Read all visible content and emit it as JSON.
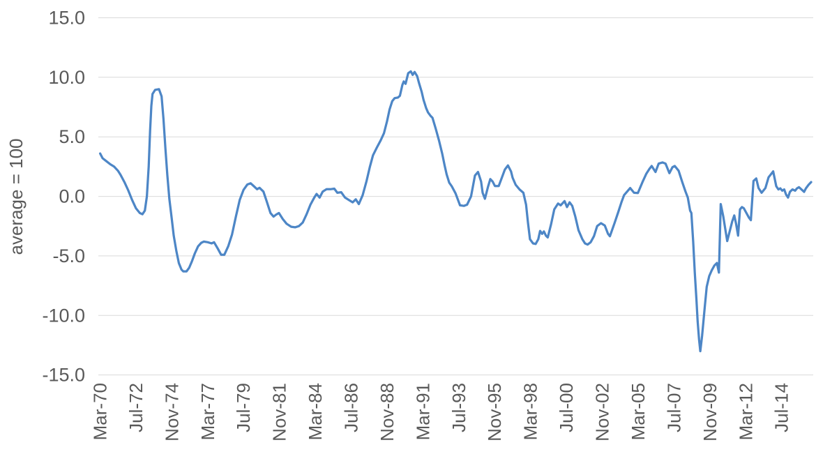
{
  "chart_data": {
    "type": "line",
    "title": "",
    "xlabel": "",
    "ylabel": "average = 100",
    "ylim": [
      -15,
      15
    ],
    "ytick_step": 5,
    "grid": true,
    "legend": false,
    "grid_color": "#d9d9d9",
    "axis_text_color": "#595959",
    "background_color": "#ffffff",
    "ytick_labels": [
      "15.0",
      "10.0",
      "5.0",
      "0.0",
      "-5.0",
      "-10.0",
      "-15.0"
    ],
    "xtick_labels": [
      "Mar-70",
      "Jul-72",
      "Nov-74",
      "Mar-77",
      "Jul-79",
      "Nov-81",
      "Mar-84",
      "Jul-86",
      "Nov-88",
      "Mar-91",
      "Jul-93",
      "Nov-95",
      "Mar-98",
      "Jul-00",
      "Nov-02",
      "Mar-05",
      "Jul-07",
      "Nov-09",
      "Mar-12",
      "Jul-14"
    ],
    "xtick_years": [
      1970.167,
      1972.5,
      1974.833,
      1977.167,
      1979.5,
      1981.833,
      1984.167,
      1986.5,
      1988.833,
      1991.167,
      1993.5,
      1995.833,
      1998.167,
      2000.5,
      2002.833,
      2005.167,
      2007.5,
      2009.833,
      2012.167,
      2014.5
    ],
    "x_range": [
      1970.17,
      2016.5
    ],
    "series": [
      {
        "color": "#4d86c6",
        "points": [
          [
            1970.17,
            3.6
          ],
          [
            1970.33,
            3.2
          ],
          [
            1970.58,
            2.95
          ],
          [
            1970.83,
            2.7
          ],
          [
            1971.08,
            2.5
          ],
          [
            1971.33,
            2.15
          ],
          [
            1971.5,
            1.8
          ],
          [
            1971.75,
            1.2
          ],
          [
            1972,
            0.5
          ],
          [
            1972.25,
            -0.3
          ],
          [
            1972.5,
            -1
          ],
          [
            1972.75,
            -1.4
          ],
          [
            1972.92,
            -1.5
          ],
          [
            1973.08,
            -1.2
          ],
          [
            1973.21,
            0
          ],
          [
            1973.33,
            2.5
          ],
          [
            1973.42,
            5.5
          ],
          [
            1973.5,
            7.6
          ],
          [
            1973.58,
            8.6
          ],
          [
            1973.75,
            8.95
          ],
          [
            1974,
            9
          ],
          [
            1974.17,
            8.4
          ],
          [
            1974.29,
            6.5
          ],
          [
            1974.42,
            4
          ],
          [
            1974.54,
            1.8
          ],
          [
            1974.67,
            -0.2
          ],
          [
            1974.83,
            -1.9
          ],
          [
            1974.96,
            -3.3
          ],
          [
            1975.13,
            -4.6
          ],
          [
            1975.29,
            -5.6
          ],
          [
            1975.46,
            -6.15
          ],
          [
            1975.58,
            -6.3
          ],
          [
            1975.79,
            -6.3
          ],
          [
            1975.96,
            -6
          ],
          [
            1976.13,
            -5.5
          ],
          [
            1976.33,
            -4.8
          ],
          [
            1976.54,
            -4.2
          ],
          [
            1976.75,
            -3.9
          ],
          [
            1976.92,
            -3.8
          ],
          [
            1977.17,
            -3.85
          ],
          [
            1977.42,
            -3.95
          ],
          [
            1977.58,
            -3.85
          ],
          [
            1977.83,
            -4.4
          ],
          [
            1978.04,
            -4.9
          ],
          [
            1978.25,
            -4.9
          ],
          [
            1978.5,
            -4.2
          ],
          [
            1978.75,
            -3.2
          ],
          [
            1979,
            -1.7
          ],
          [
            1979.25,
            -0.3
          ],
          [
            1979.5,
            0.55
          ],
          [
            1979.75,
            1
          ],
          [
            1979.96,
            1.1
          ],
          [
            1980.17,
            0.85
          ],
          [
            1980.38,
            0.6
          ],
          [
            1980.54,
            0.72
          ],
          [
            1980.79,
            0.4
          ],
          [
            1981,
            -0.4
          ],
          [
            1981.25,
            -1.4
          ],
          [
            1981.45,
            -1.7
          ],
          [
            1981.6,
            -1.55
          ],
          [
            1981.8,
            -1.4
          ],
          [
            1982.05,
            -1.9
          ],
          [
            1982.3,
            -2.3
          ],
          [
            1982.6,
            -2.55
          ],
          [
            1982.85,
            -2.6
          ],
          [
            1983.1,
            -2.5
          ],
          [
            1983.35,
            -2.2
          ],
          [
            1983.6,
            -1.5
          ],
          [
            1983.85,
            -0.7
          ],
          [
            1984.1,
            -0.1
          ],
          [
            1984.25,
            0.2
          ],
          [
            1984.45,
            -0.1
          ],
          [
            1984.65,
            0.4
          ],
          [
            1984.9,
            0.6
          ],
          [
            1985.15,
            0.6
          ],
          [
            1985.4,
            0.65
          ],
          [
            1985.6,
            0.3
          ],
          [
            1985.85,
            0.35
          ],
          [
            1986.1,
            -0.1
          ],
          [
            1986.35,
            -0.3
          ],
          [
            1986.6,
            -0.5
          ],
          [
            1986.8,
            -0.25
          ],
          [
            1987,
            -0.65
          ],
          [
            1987.25,
            0.1
          ],
          [
            1987.5,
            1.3
          ],
          [
            1987.71,
            2.45
          ],
          [
            1987.92,
            3.45
          ],
          [
            1988.17,
            4.1
          ],
          [
            1988.42,
            4.7
          ],
          [
            1988.63,
            5.3
          ],
          [
            1988.83,
            6.3
          ],
          [
            1989,
            7.3
          ],
          [
            1989.17,
            8
          ],
          [
            1989.33,
            8.25
          ],
          [
            1989.54,
            8.3
          ],
          [
            1989.67,
            8.45
          ],
          [
            1989.83,
            9.35
          ],
          [
            1989.92,
            9.65
          ],
          [
            1990.04,
            9.45
          ],
          [
            1990.21,
            10.35
          ],
          [
            1990.38,
            10.5
          ],
          [
            1990.5,
            10.2
          ],
          [
            1990.63,
            10.45
          ],
          [
            1990.79,
            10.1
          ],
          [
            1990.92,
            9.5
          ],
          [
            1991.08,
            8.8
          ],
          [
            1991.21,
            8.1
          ],
          [
            1991.38,
            7.4
          ],
          [
            1991.5,
            7.05
          ],
          [
            1991.67,
            6.75
          ],
          [
            1991.79,
            6.6
          ],
          [
            1992,
            5.7
          ],
          [
            1992.21,
            4.7
          ],
          [
            1992.42,
            3.6
          ],
          [
            1992.58,
            2.6
          ],
          [
            1992.71,
            1.85
          ],
          [
            1992.88,
            1.15
          ],
          [
            1993.04,
            0.85
          ],
          [
            1993.29,
            0.25
          ],
          [
            1993.58,
            -0.75
          ],
          [
            1993.83,
            -0.8
          ],
          [
            1994.04,
            -0.7
          ],
          [
            1994.3,
            0
          ],
          [
            1994.55,
            1.75
          ],
          [
            1994.75,
            2.05
          ],
          [
            1994.95,
            1.25
          ],
          [
            1995.05,
            0.3
          ],
          [
            1995.2,
            -0.2
          ],
          [
            1995.4,
            0.8
          ],
          [
            1995.55,
            1.45
          ],
          [
            1995.7,
            1.25
          ],
          [
            1995.85,
            0.87
          ],
          [
            1996.1,
            0.87
          ],
          [
            1996.3,
            1.56
          ],
          [
            1996.5,
            2.25
          ],
          [
            1996.7,
            2.6
          ],
          [
            1996.9,
            2.1
          ],
          [
            1997,
            1.56
          ],
          [
            1997.2,
            0.97
          ],
          [
            1997.45,
            0.58
          ],
          [
            1997.7,
            0.3
          ],
          [
            1997.88,
            -0.7
          ],
          [
            1998,
            -2.2
          ],
          [
            1998.13,
            -3.6
          ],
          [
            1998.33,
            -3.95
          ],
          [
            1998.5,
            -4
          ],
          [
            1998.67,
            -3.6
          ],
          [
            1998.79,
            -2.9
          ],
          [
            1998.92,
            -3.15
          ],
          [
            1999.04,
            -2.95
          ],
          [
            1999.17,
            -3.3
          ],
          [
            1999.29,
            -3.45
          ],
          [
            1999.5,
            -2.35
          ],
          [
            1999.71,
            -1.1
          ],
          [
            1999.96,
            -0.6
          ],
          [
            2000.13,
            -0.75
          ],
          [
            2000.38,
            -0.4
          ],
          [
            2000.54,
            -0.9
          ],
          [
            2000.71,
            -0.5
          ],
          [
            2000.88,
            -0.8
          ],
          [
            2001.08,
            -1.7
          ],
          [
            2001.29,
            -2.85
          ],
          [
            2001.54,
            -3.6
          ],
          [
            2001.71,
            -3.95
          ],
          [
            2001.88,
            -4.05
          ],
          [
            2002.08,
            -3.85
          ],
          [
            2002.29,
            -3.35
          ],
          [
            2002.5,
            -2.5
          ],
          [
            2002.75,
            -2.25
          ],
          [
            2003,
            -2.45
          ],
          [
            2003.21,
            -3.15
          ],
          [
            2003.33,
            -3.35
          ],
          [
            2003.63,
            -2.25
          ],
          [
            2003.88,
            -1.3
          ],
          [
            2004.08,
            -0.5
          ],
          [
            2004.25,
            0.1
          ],
          [
            2004.45,
            0.4
          ],
          [
            2004.65,
            0.7
          ],
          [
            2004.9,
            0.3
          ],
          [
            2005.15,
            0.28
          ],
          [
            2005.45,
            1.2
          ],
          [
            2005.7,
            1.9
          ],
          [
            2005.9,
            2.3
          ],
          [
            2006.05,
            2.55
          ],
          [
            2006.3,
            2.05
          ],
          [
            2006.5,
            2.75
          ],
          [
            2006.75,
            2.85
          ],
          [
            2006.95,
            2.75
          ],
          [
            2007.2,
            1.95
          ],
          [
            2007.4,
            2.45
          ],
          [
            2007.55,
            2.55
          ],
          [
            2007.8,
            2.15
          ],
          [
            2008.05,
            1.15
          ],
          [
            2008.25,
            0.4
          ],
          [
            2008.4,
            -0.1
          ],
          [
            2008.55,
            -1.2
          ],
          [
            2008.63,
            -1.4
          ],
          [
            2008.75,
            -3.8
          ],
          [
            2008.85,
            -6.4
          ],
          [
            2008.96,
            -8.7
          ],
          [
            2009.04,
            -10.5
          ],
          [
            2009.13,
            -12
          ],
          [
            2009.21,
            -13
          ],
          [
            2009.33,
            -11.7
          ],
          [
            2009.5,
            -9.3
          ],
          [
            2009.63,
            -7.6
          ],
          [
            2009.79,
            -6.7
          ],
          [
            2009.96,
            -6.2
          ],
          [
            2010.13,
            -5.8
          ],
          [
            2010.29,
            -5.6
          ],
          [
            2010.42,
            -6.4
          ],
          [
            2010.54,
            -0.65
          ],
          [
            2010.71,
            -1.7
          ],
          [
            2010.83,
            -2.7
          ],
          [
            2010.96,
            -3.75
          ],
          [
            2011.13,
            -2.9
          ],
          [
            2011.29,
            -2.1
          ],
          [
            2011.42,
            -1.6
          ],
          [
            2011.54,
            -2.3
          ],
          [
            2011.67,
            -3.3
          ],
          [
            2011.79,
            -1.1
          ],
          [
            2011.92,
            -0.9
          ],
          [
            2012.04,
            -1
          ],
          [
            2012.21,
            -1.4
          ],
          [
            2012.38,
            -1.8
          ],
          [
            2012.5,
            -2
          ],
          [
            2012.67,
            1.3
          ],
          [
            2012.85,
            1.5
          ],
          [
            2013,
            0.7
          ],
          [
            2013.2,
            0.3
          ],
          [
            2013.45,
            0.7
          ],
          [
            2013.65,
            1.6
          ],
          [
            2013.95,
            2.1
          ],
          [
            2014.15,
            0.85
          ],
          [
            2014.29,
            0.58
          ],
          [
            2014.42,
            0.67
          ],
          [
            2014.54,
            0.48
          ],
          [
            2014.67,
            0.58
          ],
          [
            2014.79,
            0.15
          ],
          [
            2014.92,
            -0.1
          ],
          [
            2015.04,
            0.38
          ],
          [
            2015.21,
            0.58
          ],
          [
            2015.38,
            0.48
          ],
          [
            2015.5,
            0.67
          ],
          [
            2015.63,
            0.77
          ],
          [
            2015.79,
            0.58
          ],
          [
            2015.96,
            0.38
          ],
          [
            2016.08,
            0.67
          ],
          [
            2016.25,
            0.97
          ],
          [
            2016.42,
            1.2
          ]
        ]
      }
    ]
  }
}
